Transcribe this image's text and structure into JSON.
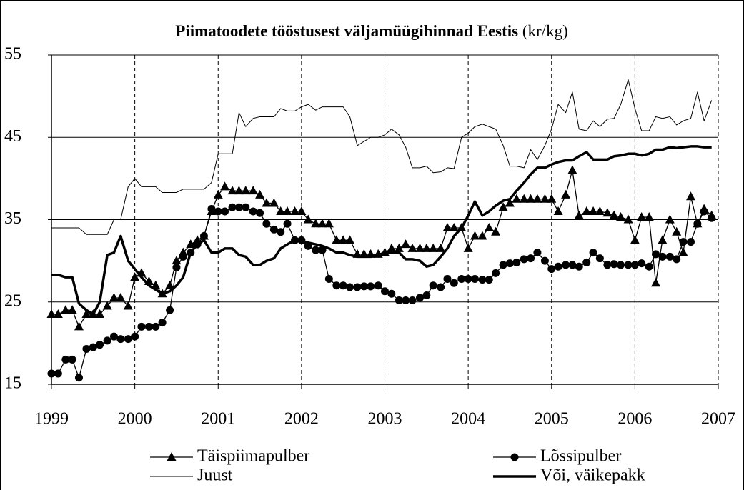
{
  "chart_data": {
    "type": "line",
    "title": "Piimatoodete tööstusest väljamüügihinnad Eestis",
    "subtitle": "(kr/kg)",
    "x": [
      1999,
      1999.08,
      1999.17,
      1999.25,
      1999.33,
      1999.42,
      1999.5,
      1999.58,
      1999.67,
      1999.75,
      1999.83,
      1999.92,
      2000,
      2000.08,
      2000.17,
      2000.25,
      2000.33,
      2000.42,
      2000.5,
      2000.58,
      2000.67,
      2000.75,
      2000.83,
      2000.92,
      2001,
      2001.08,
      2001.17,
      2001.25,
      2001.33,
      2001.42,
      2001.5,
      2001.58,
      2001.67,
      2001.75,
      2001.83,
      2001.92,
      2002,
      2002.08,
      2002.17,
      2002.25,
      2002.33,
      2002.42,
      2002.5,
      2002.58,
      2002.67,
      2002.75,
      2002.83,
      2002.92,
      2003,
      2003.08,
      2003.17,
      2003.25,
      2003.33,
      2003.42,
      2003.5,
      2003.58,
      2003.67,
      2003.75,
      2003.83,
      2003.92,
      2004,
      2004.08,
      2004.17,
      2004.25,
      2004.33,
      2004.42,
      2004.5,
      2004.58,
      2004.67,
      2004.75,
      2004.83,
      2004.92,
      2005,
      2005.08,
      2005.17,
      2005.25,
      2005.33,
      2005.42,
      2005.5,
      2005.58,
      2005.67,
      2005.75,
      2005.83,
      2005.92,
      2006,
      2006.08,
      2006.17,
      2006.25,
      2006.33,
      2006.42,
      2006.5,
      2006.58,
      2006.67,
      2006.75,
      2006.83,
      2006.92
    ],
    "series": [
      {
        "name": "Täispiimapulber",
        "color": "#000000",
        "marker": "triangle",
        "linewidth": 1.3,
        "values": [
          23.5,
          23.5,
          24,
          24,
          22,
          23.5,
          23.5,
          23.5,
          24.5,
          25.5,
          25.5,
          24.5,
          28,
          28.5,
          27.5,
          27,
          26,
          27,
          30,
          31,
          32,
          32.5,
          33,
          36,
          38,
          39,
          38.5,
          38.5,
          38.5,
          38.5,
          38,
          37,
          37,
          36,
          36,
          36,
          36,
          35,
          34.5,
          34.5,
          34.5,
          32.5,
          32.5,
          32.5,
          30.8,
          30.8,
          30.8,
          30.8,
          31,
          31.5,
          31.5,
          32,
          31.5,
          31.5,
          31.5,
          31.5,
          31.5,
          34,
          34,
          34,
          31.5,
          33,
          33,
          34,
          33.5,
          36.5,
          37,
          37.5,
          37.5,
          37.5,
          37.5,
          37.5,
          37.5,
          36,
          38,
          41,
          35.5,
          36,
          36,
          36,
          35.8,
          35.5,
          35.3,
          35,
          32.5,
          35.3,
          35.3,
          27.3,
          32.5,
          35,
          33.5,
          31,
          37.8,
          34.5,
          36.3,
          35.5
        ]
      },
      {
        "name": "Lõssipulber",
        "color": "#000000",
        "marker": "circle",
        "linewidth": 1.3,
        "values": [
          16.3,
          16.3,
          18,
          18,
          15.8,
          19.3,
          19.5,
          19.8,
          20.3,
          20.8,
          20.5,
          20.5,
          20.8,
          22,
          22,
          22,
          22.5,
          24,
          29.2,
          30.5,
          31,
          32,
          33,
          36.3,
          36,
          36,
          36.5,
          36.5,
          36.5,
          36,
          35.8,
          34.5,
          33.8,
          33.5,
          34.5,
          32.5,
          32.5,
          31.8,
          31.3,
          31.3,
          27.8,
          27,
          27,
          26.8,
          26.8,
          26.9,
          26.9,
          27,
          26.3,
          26,
          25.2,
          25.2,
          25.2,
          25.5,
          25.8,
          27,
          26.8,
          27.8,
          27.3,
          27.8,
          27.8,
          27.8,
          27.7,
          27.7,
          28.5,
          29.5,
          29.7,
          29.8,
          30.2,
          30.3,
          31,
          30,
          29,
          29.3,
          29.5,
          29.5,
          29.3,
          29.8,
          31,
          30.3,
          29.5,
          29.6,
          29.5,
          29.5,
          29.5,
          29.7,
          29.3,
          30.8,
          30.5,
          30.5,
          30.2,
          32.3,
          32.3,
          34.5,
          36,
          35.2
        ]
      },
      {
        "name": "Juust",
        "color": "#000000",
        "marker": null,
        "linewidth": 1,
        "values": [
          34,
          34,
          34,
          34,
          34,
          33.2,
          33.2,
          33.2,
          33.2,
          35,
          35,
          39,
          40,
          39,
          39,
          39,
          38.3,
          38.3,
          38.3,
          38.7,
          38.7,
          38.7,
          38.7,
          39.5,
          43,
          43,
          43,
          48,
          46.3,
          47.3,
          47.5,
          47.5,
          47.5,
          48.5,
          48.2,
          48.2,
          48.7,
          49,
          48.3,
          48.7,
          48.7,
          48.7,
          48.7,
          47.5,
          44,
          44.5,
          45,
          45,
          45.3,
          46,
          45.3,
          43.8,
          41.3,
          41.3,
          41.5,
          40.7,
          40.8,
          41.3,
          41.2,
          45,
          45.5,
          46.3,
          46.6,
          46.3,
          46,
          44,
          41.5,
          41.5,
          41.3,
          43.5,
          42.3,
          44,
          46,
          49,
          48,
          50.5,
          46,
          45.8,
          47,
          46.3,
          47.2,
          47.3,
          49,
          52,
          48.5,
          45.8,
          45.8,
          47.5,
          47.3,
          47.5,
          46.5,
          47,
          47.3,
          50.5,
          47,
          49.5
        ]
      },
      {
        "name": "Või, väikepakk",
        "color": "#000000",
        "marker": null,
        "linewidth": 3.5,
        "values": [
          28.3,
          28.3,
          28,
          28,
          24.8,
          24,
          23.5,
          25,
          30.7,
          31,
          33,
          30,
          29,
          28,
          27,
          26.5,
          26,
          26.3,
          27,
          28,
          31,
          32,
          32.5,
          31,
          31,
          31.5,
          31.5,
          30.7,
          30.5,
          29.5,
          29.5,
          30,
          30.3,
          31.5,
          32,
          32.5,
          32.3,
          32.2,
          32,
          31.8,
          31.5,
          31,
          31,
          30.7,
          30.5,
          30.5,
          30.5,
          30.7,
          31,
          31,
          31,
          30.2,
          30.2,
          30,
          29.3,
          29.5,
          30.5,
          31.5,
          33,
          34,
          35.5,
          37.2,
          35.5,
          36,
          36.7,
          37.3,
          37.5,
          38.5,
          39.5,
          40.5,
          41.3,
          41.3,
          41.7,
          42,
          42.2,
          42.2,
          42.7,
          43.2,
          42.3,
          42.3,
          42.3,
          42.7,
          42.8,
          43,
          43,
          42.8,
          43,
          43.5,
          43.5,
          43.8,
          43.7,
          43.8,
          43.9,
          43.9,
          43.8,
          43.8
        ]
      }
    ],
    "xlim": [
      1999,
      2007
    ],
    "xticks": [
      1999,
      2000,
      2001,
      2002,
      2003,
      2004,
      2005,
      2006,
      2007
    ],
    "ylim": [
      15,
      55
    ],
    "yticks": [
      15,
      25,
      35,
      45,
      55
    ],
    "grid": true
  }
}
